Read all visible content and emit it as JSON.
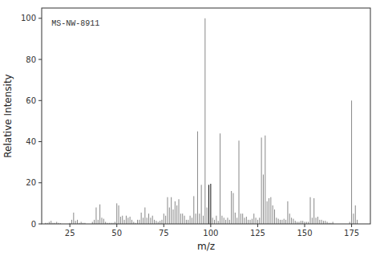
{
  "chart_data": {
    "type": "stem",
    "title": "MS-NW-8911",
    "xlabel": "m/z",
    "ylabel": "Relative Intensity",
    "xlim": [
      10,
      185
    ],
    "ylim": [
      0,
      105
    ],
    "xticks": [
      25,
      50,
      75,
      100,
      125,
      150,
      175
    ],
    "yticks": [
      0,
      20,
      40,
      60,
      80,
      100
    ],
    "x": [
      12,
      13,
      14,
      15,
      16,
      17,
      18,
      19,
      20,
      25,
      26,
      27,
      28,
      29,
      30,
      31,
      32,
      33,
      37,
      38,
      39,
      40,
      41,
      42,
      43,
      44,
      45,
      46,
      47,
      48,
      49,
      50,
      51,
      52,
      53,
      54,
      55,
      56,
      57,
      58,
      59,
      60,
      61,
      62,
      63,
      64,
      65,
      66,
      67,
      68,
      69,
      70,
      71,
      72,
      73,
      74,
      75,
      76,
      77,
      78,
      79,
      80,
      81,
      82,
      83,
      84,
      85,
      86,
      87,
      88,
      89,
      90,
      91,
      92,
      93,
      94,
      95,
      96,
      97,
      98,
      99,
      100,
      101,
      102,
      103,
      104,
      105,
      106,
      107,
      108,
      109,
      110,
      111,
      112,
      113,
      114,
      115,
      116,
      117,
      118,
      119,
      120,
      121,
      122,
      123,
      124,
      125,
      126,
      127,
      128,
      129,
      130,
      131,
      132,
      133,
      134,
      135,
      136,
      137,
      138,
      139,
      140,
      141,
      142,
      143,
      144,
      145,
      146,
      147,
      148,
      149,
      150,
      151,
      152,
      153,
      154,
      155,
      156,
      157,
      158,
      159,
      160,
      161,
      162,
      163,
      164,
      165,
      174,
      175,
      176,
      177,
      178
    ],
    "values": [
      0.5,
      0.5,
      1.0,
      1.5,
      0.5,
      0.5,
      1.0,
      0.5,
      0.3,
      0.5,
      2.0,
      5.5,
      1.5,
      2.0,
      0.5,
      1.0,
      0.5,
      0.5,
      1.0,
      2.0,
      8.0,
      2.0,
      9.5,
      3.0,
      2.5,
      1.0,
      0.5,
      0.5,
      0.5,
      0.5,
      1.0,
      10.0,
      9.0,
      3.5,
      4.0,
      2.0,
      4.0,
      3.0,
      3.5,
      2.0,
      1.0,
      0.5,
      2.0,
      2.0,
      5.5,
      3.0,
      8.0,
      3.0,
      5.0,
      3.0,
      4.0,
      2.0,
      1.5,
      1.0,
      1.5,
      2.0,
      5.0,
      4.0,
      13.0,
      8.0,
      13.0,
      7.0,
      11.0,
      9.0,
      12.0,
      5.0,
      5.0,
      4.0,
      2.0,
      2.0,
      4.0,
      3.0,
      13.5,
      5.0,
      45.0,
      5.0,
      19.0,
      4.0,
      100.0,
      8.0,
      19.0,
      19.5,
      3.0,
      2.0,
      4.0,
      1.5,
      44.0,
      4.0,
      3.0,
      2.0,
      3.0,
      2.0,
      16.0,
      15.0,
      5.5,
      3.0,
      40.5,
      5.0,
      5.0,
      3.0,
      3.5,
      2.0,
      2.0,
      2.5,
      5.0,
      3.0,
      2.0,
      3.0,
      42.0,
      24.0,
      43.0,
      11.0,
      12.5,
      13.0,
      9.0,
      7.0,
      3.0,
      2.5,
      2.0,
      2.0,
      2.5,
      2.0,
      11.0,
      5.0,
      3.0,
      2.5,
      1.5,
      1.0,
      1.0,
      1.5,
      1.5,
      1.0,
      1.0,
      1.0,
      13.0,
      3.0,
      12.5,
      3.0,
      3.5,
      2.0,
      2.0,
      1.5,
      1.5,
      1.0,
      0.5,
      0.5,
      1.0,
      1.0,
      60.0,
      5.0,
      9.0,
      2.0
    ],
    "colors": [
      "#888888",
      "#888888",
      "#888888",
      "#888888",
      "#888888",
      "#888888",
      "#888888",
      "#888888",
      "#888888",
      "#888888",
      "#888888",
      "#888888",
      "#888888",
      "#888888",
      "#888888",
      "#888888",
      "#888888",
      "#888888",
      "#888888",
      "#888888",
      "#888888",
      "#888888",
      "#888888",
      "#888888",
      "#888888",
      "#888888",
      "#888888",
      "#888888",
      "#888888",
      "#888888",
      "#888888",
      "#888888",
      "#888888",
      "#888888",
      "#888888",
      "#888888",
      "#888888",
      "#888888",
      "#888888",
      "#888888",
      "#888888",
      "#888888",
      "#888888",
      "#888888",
      "#888888",
      "#888888",
      "#888888",
      "#888888",
      "#888888",
      "#888888",
      "#888888",
      "#888888",
      "#888888",
      "#888888",
      "#888888",
      "#888888",
      "#888888",
      "#888888",
      "#888888",
      "#888888",
      "#888888",
      "#888888",
      "#888888",
      "#888888",
      "#888888",
      "#888888",
      "#888888",
      "#888888",
      "#888888",
      "#888888",
      "#888888",
      "#888888",
      "#888888",
      "#888888",
      "#888888",
      "#888888",
      "#888888",
      "#888888",
      "#888888",
      "#888888",
      "#111111",
      "#111111",
      "#888888",
      "#888888",
      "#888888",
      "#888888",
      "#888888",
      "#888888",
      "#888888",
      "#888888",
      "#888888",
      "#888888",
      "#888888",
      "#888888",
      "#888888",
      "#888888",
      "#888888",
      "#888888",
      "#888888",
      "#888888",
      "#888888",
      "#888888",
      "#888888",
      "#888888",
      "#888888",
      "#888888",
      "#888888",
      "#888888",
      "#888888",
      "#888888",
      "#888888",
      "#888888",
      "#888888",
      "#888888",
      "#888888",
      "#888888",
      "#888888",
      "#888888",
      "#888888",
      "#888888",
      "#888888",
      "#888888",
      "#888888",
      "#888888",
      "#888888",
      "#888888",
      "#888888",
      "#888888",
      "#888888",
      "#888888",
      "#888888",
      "#888888",
      "#888888",
      "#888888",
      "#888888",
      "#888888",
      "#888888",
      "#888888",
      "#888888",
      "#888888",
      "#888888",
      "#888888",
      "#888888",
      "#888888",
      "#888888",
      "#888888",
      "#888888",
      "#888888",
      "#888888",
      "#888888",
      "#888888",
      "#888888"
    ]
  }
}
